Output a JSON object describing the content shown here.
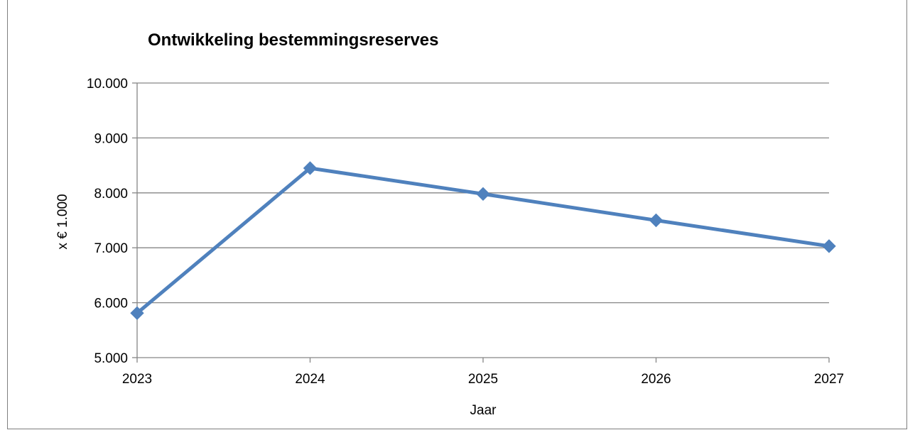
{
  "chart_data": {
    "type": "line",
    "title": "Ontwikkeling bestemmingsreserves",
    "xlabel": "Jaar",
    "ylabel": "x € 1.000",
    "x": [
      "2023",
      "2024",
      "2025",
      "2026",
      "2027"
    ],
    "series": [
      {
        "values": [
          5810,
          8450,
          7980,
          7500,
          7030
        ],
        "color": "#4f81bd"
      }
    ],
    "ylim": [
      5000,
      10000
    ],
    "ytick_values": [
      5000,
      6000,
      7000,
      8000,
      9000,
      10000
    ],
    "ytick_labels": [
      "5.000",
      "6.000",
      "7.000",
      "8.000",
      "9.000",
      "10.000"
    ],
    "grid": true,
    "legend": "none",
    "marker": "diamond",
    "gridline_color": "#868686",
    "axis_color": "#868686"
  }
}
